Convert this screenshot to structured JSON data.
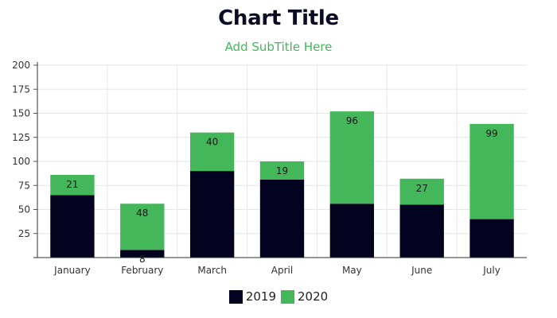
{
  "chart_data": {
    "type": "bar",
    "stacked": true,
    "title": "Chart Title",
    "subtitle": "Add SubTitle Here",
    "xlabel": "",
    "ylabel": "",
    "categories": [
      "January",
      "February",
      "March",
      "April",
      "May",
      "June",
      "July"
    ],
    "series": [
      {
        "name": "2019",
        "color": "#03031f",
        "values": [
          65,
          8,
          90,
          81,
          56,
          55,
          40
        ],
        "labels": [
          "",
          "8",
          "",
          "",
          "",
          "",
          ""
        ]
      },
      {
        "name": "2020",
        "color": "#44b75a",
        "values": [
          21,
          48,
          40,
          19,
          96,
          27,
          99
        ],
        "labels": [
          "21",
          "48",
          "40",
          "19",
          "96",
          "27",
          "99"
        ]
      }
    ],
    "ylim": [
      0,
      200
    ],
    "yticks": [
      25,
      50,
      75,
      100,
      125,
      150,
      175,
      200
    ],
    "grid": true,
    "legend_position": "bottom"
  }
}
